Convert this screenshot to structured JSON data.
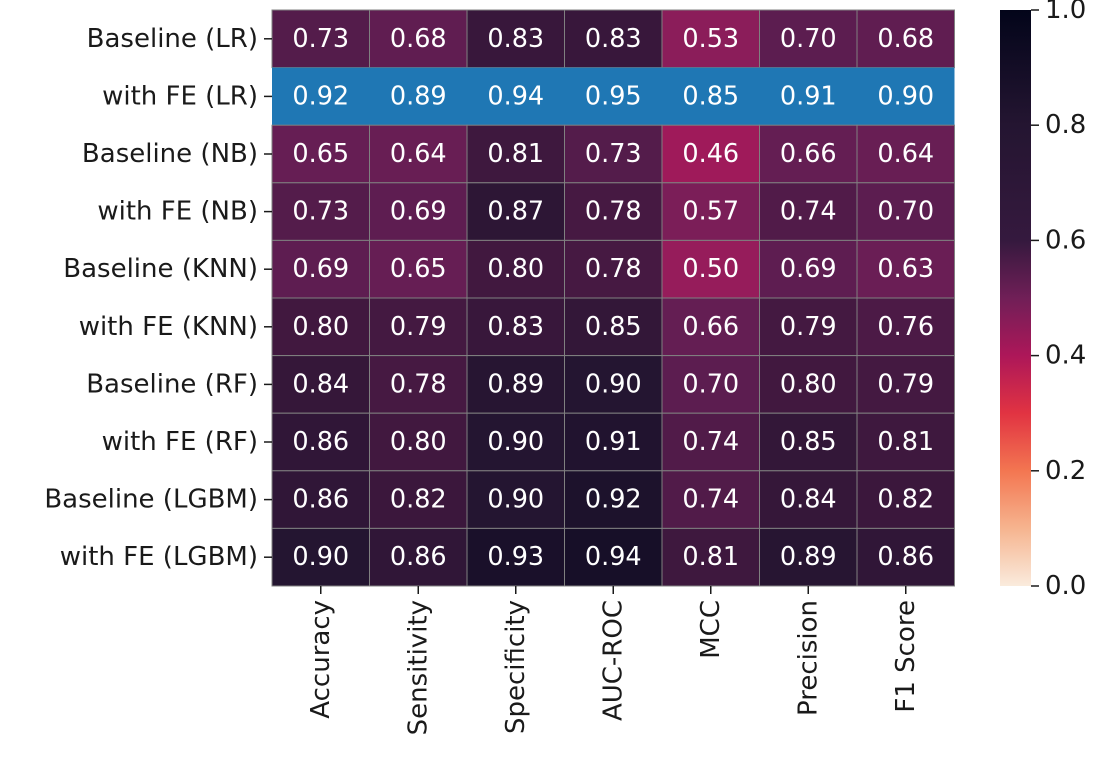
{
  "chart_data": {
    "type": "heatmap",
    "rows": [
      "Baseline (LR)",
      "with FE (LR)",
      "Baseline (NB)",
      "with FE (NB)",
      "Baseline (KNN)",
      "with FE (KNN)",
      "Baseline (RF)",
      "with FE (RF)",
      "Baseline (LGBM)",
      "with FE (LGBM)"
    ],
    "columns": [
      "Accuracy",
      "Sensitivity",
      "Specificity",
      "AUC-ROC",
      "MCC",
      "Precision",
      "F1 Score"
    ],
    "values": [
      [
        "0.73",
        "0.68",
        "0.83",
        "0.83",
        "0.53",
        "0.70",
        "0.68"
      ],
      [
        "0.92",
        "0.89",
        "0.94",
        "0.95",
        "0.85",
        "0.91",
        "0.90"
      ],
      [
        "0.65",
        "0.64",
        "0.81",
        "0.73",
        "0.46",
        "0.66",
        "0.64"
      ],
      [
        "0.73",
        "0.69",
        "0.87",
        "0.78",
        "0.57",
        "0.74",
        "0.70"
      ],
      [
        "0.69",
        "0.65",
        "0.80",
        "0.78",
        "0.50",
        "0.69",
        "0.63"
      ],
      [
        "0.80",
        "0.79",
        "0.83",
        "0.85",
        "0.66",
        "0.79",
        "0.76"
      ],
      [
        "0.84",
        "0.78",
        "0.89",
        "0.90",
        "0.70",
        "0.80",
        "0.79"
      ],
      [
        "0.86",
        "0.80",
        "0.90",
        "0.91",
        "0.74",
        "0.85",
        "0.81"
      ],
      [
        "0.86",
        "0.82",
        "0.90",
        "0.92",
        "0.74",
        "0.84",
        "0.82"
      ],
      [
        "0.90",
        "0.86",
        "0.93",
        "0.94",
        "0.81",
        "0.89",
        "0.86"
      ]
    ],
    "highlighted_row": "with FE (LR)",
    "highlight_color": "#1f77b4",
    "colormap": "rocket_r",
    "colorbar": {
      "range": [
        0.0,
        1.0
      ],
      "ticks": [
        "0.0",
        "0.2",
        "0.4",
        "0.6",
        "0.8",
        "1.0"
      ]
    },
    "gridlines": "grey",
    "title": "",
    "xlabel": "",
    "ylabel": ""
  }
}
